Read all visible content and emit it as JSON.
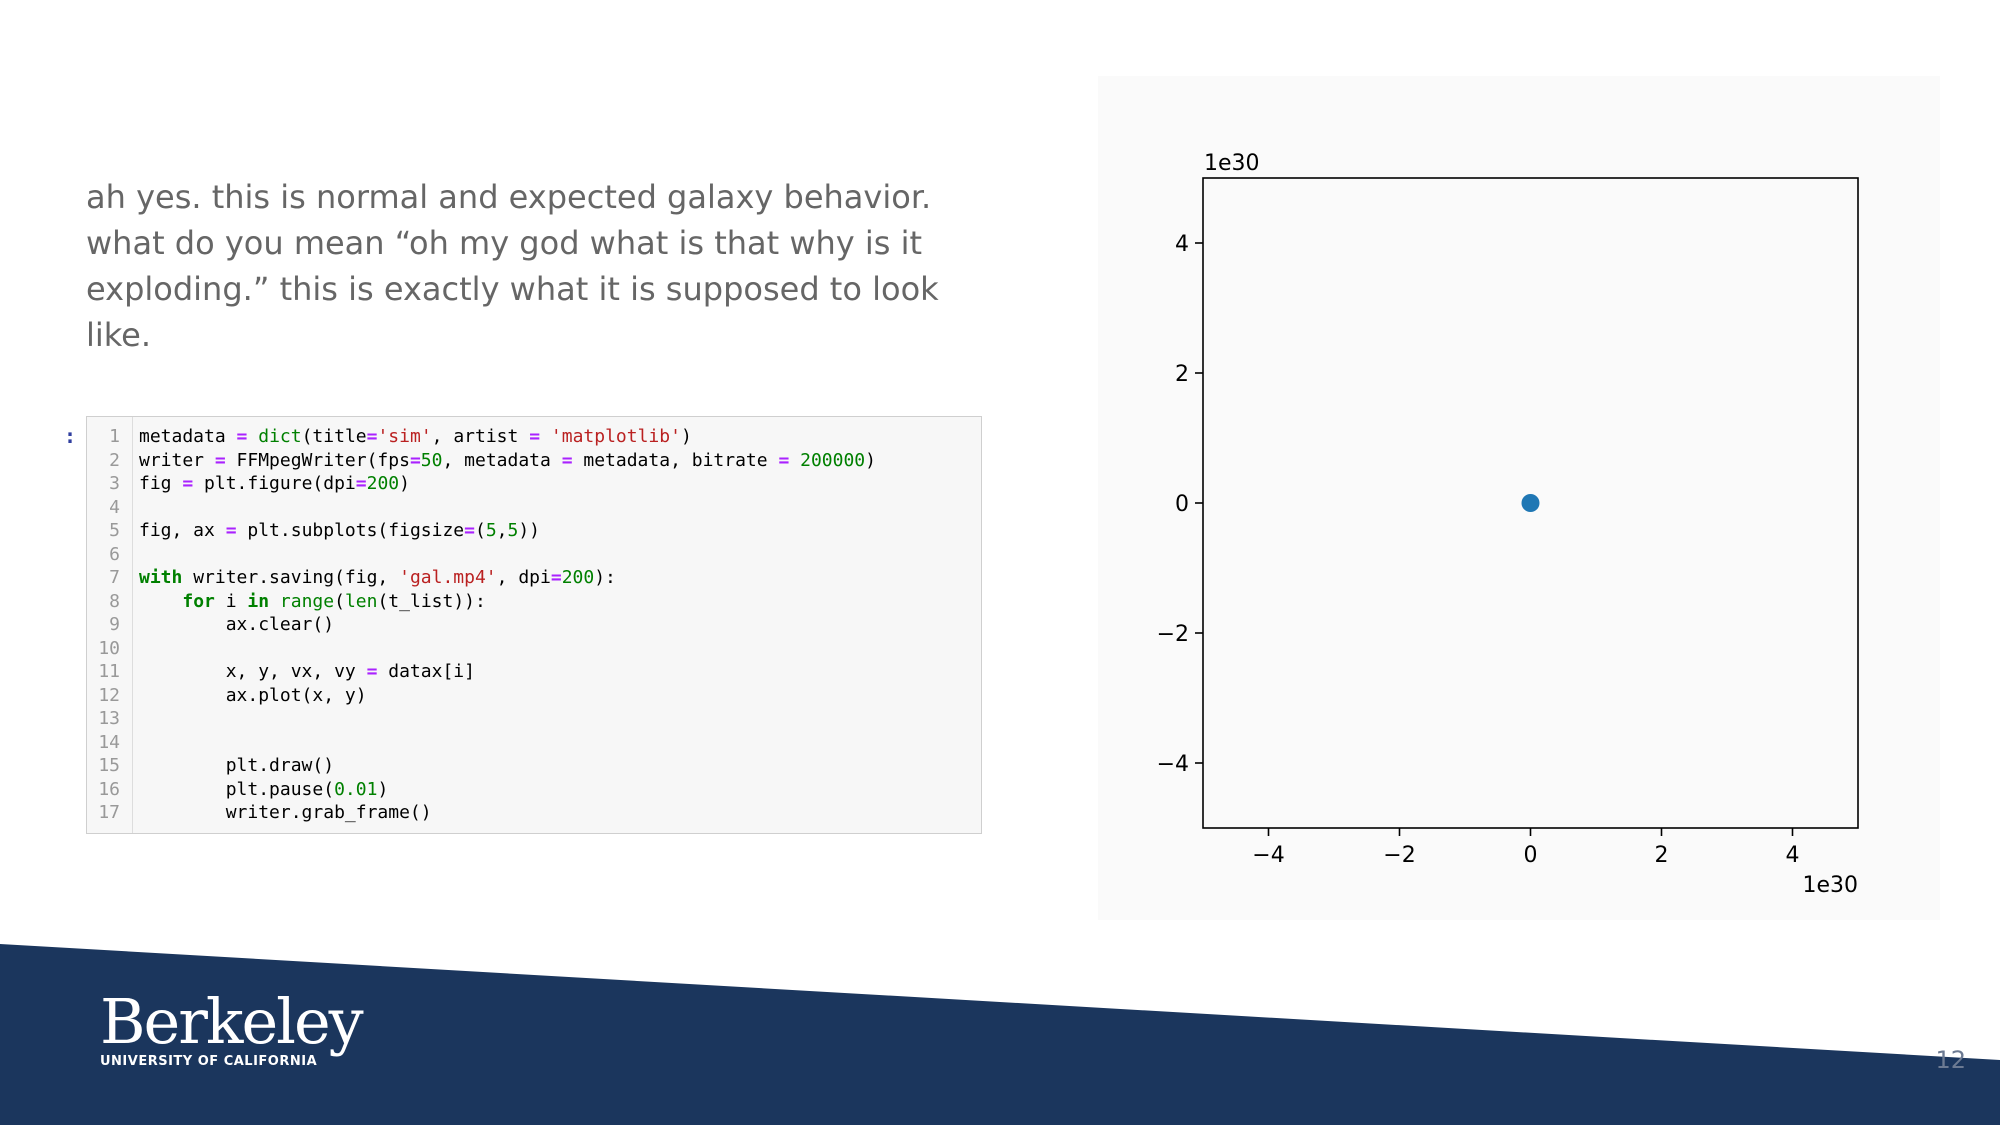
{
  "slide": {
    "text": "ah yes. this is normal and expected galaxy behavior. what do you mean “oh my god what is that why is it exploding.” this is exactly what it is supposed to look like.",
    "page_number": "12"
  },
  "notebook": {
    "prompt": ":",
    "line_numbers": [
      "1",
      "2",
      "3",
      "4",
      "5",
      "6",
      "7",
      "8",
      "9",
      "10",
      "11",
      "12",
      "13",
      "14",
      "15",
      "16",
      "17"
    ],
    "code_lines": [
      [
        [
          "plain",
          "metadata "
        ],
        [
          "op",
          "="
        ],
        [
          "plain",
          " "
        ],
        [
          "builtin",
          "dict"
        ],
        [
          "plain",
          "(title"
        ],
        [
          "op",
          "="
        ],
        [
          "str",
          "'sim'"
        ],
        [
          "plain",
          ", artist "
        ],
        [
          "op",
          "="
        ],
        [
          "plain",
          " "
        ],
        [
          "str",
          "'matplotlib'"
        ],
        [
          "plain",
          ")"
        ]
      ],
      [
        [
          "plain",
          "writer "
        ],
        [
          "op",
          "="
        ],
        [
          "plain",
          " FFMpegWriter(fps"
        ],
        [
          "op",
          "="
        ],
        [
          "num",
          "50"
        ],
        [
          "plain",
          ", metadata "
        ],
        [
          "op",
          "="
        ],
        [
          "plain",
          " metadata, bitrate "
        ],
        [
          "op",
          "="
        ],
        [
          "plain",
          " "
        ],
        [
          "num",
          "200000"
        ],
        [
          "plain",
          ")"
        ]
      ],
      [
        [
          "plain",
          "fig "
        ],
        [
          "op",
          "="
        ],
        [
          "plain",
          " plt.figure(dpi"
        ],
        [
          "op",
          "="
        ],
        [
          "num",
          "200"
        ],
        [
          "plain",
          ")"
        ]
      ],
      [],
      [
        [
          "plain",
          "fig, ax "
        ],
        [
          "op",
          "="
        ],
        [
          "plain",
          " plt.subplots(figsize"
        ],
        [
          "op",
          "="
        ],
        [
          "plain",
          "("
        ],
        [
          "num",
          "5"
        ],
        [
          "plain",
          ","
        ],
        [
          "num",
          "5"
        ],
        [
          "plain",
          "))"
        ]
      ],
      [],
      [
        [
          "kw",
          "with"
        ],
        [
          "plain",
          " writer.saving(fig, "
        ],
        [
          "str",
          "'gal.mp4'"
        ],
        [
          "plain",
          ", dpi"
        ],
        [
          "op",
          "="
        ],
        [
          "num",
          "200"
        ],
        [
          "plain",
          "):"
        ]
      ],
      [
        [
          "plain",
          "    "
        ],
        [
          "kw",
          "for"
        ],
        [
          "plain",
          " i "
        ],
        [
          "kw",
          "in"
        ],
        [
          "plain",
          " "
        ],
        [
          "builtin",
          "range"
        ],
        [
          "plain",
          "("
        ],
        [
          "builtin",
          "len"
        ],
        [
          "plain",
          "(t_list)):"
        ]
      ],
      [
        [
          "plain",
          "        ax.clear()"
        ]
      ],
      [],
      [
        [
          "plain",
          "        x, y, vx, vy "
        ],
        [
          "op",
          "="
        ],
        [
          "plain",
          " datax[i]"
        ]
      ],
      [
        [
          "plain",
          "        ax.plot(x, y)"
        ]
      ],
      [],
      [],
      [
        [
          "plain",
          "        plt.draw()"
        ]
      ],
      [
        [
          "plain",
          "        plt.pause("
        ],
        [
          "num",
          "0.01"
        ],
        [
          "plain",
          ")"
        ]
      ],
      [
        [
          "plain",
          "        writer.grab_frame()"
        ]
      ]
    ]
  },
  "chart_data": {
    "type": "scatter",
    "x_offset_label": "1e30",
    "y_offset_label": "1e30",
    "xlim": [
      -5,
      5
    ],
    "ylim": [
      -5,
      5
    ],
    "x_ticks": [
      -4,
      -2,
      0,
      2,
      4
    ],
    "y_ticks": [
      -4,
      -2,
      0,
      2,
      4
    ],
    "x_tick_labels": [
      "−4",
      "−2",
      "0",
      "2",
      "4"
    ],
    "y_tick_labels": [
      "−4",
      "−2",
      "0",
      "2",
      "4"
    ],
    "grid": false,
    "points": [
      {
        "x": 0,
        "y": 0
      }
    ],
    "marker_color": "#1f77b4"
  },
  "logo": {
    "word": "Berkeley",
    "sub": "UNIVERSITY OF CALIFORNIA"
  },
  "colors": {
    "footer": "#1b365d",
    "text": "#666666"
  }
}
